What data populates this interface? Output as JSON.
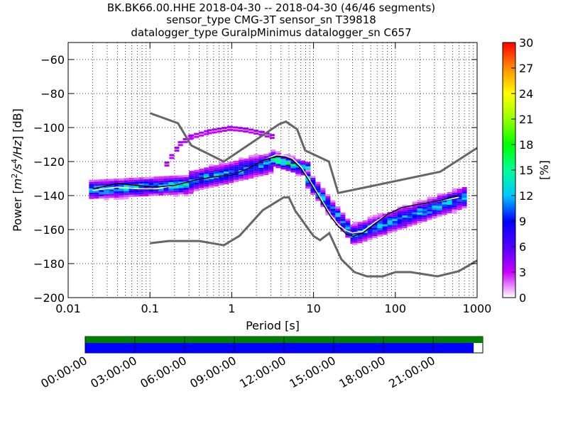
{
  "title_lines": [
    "BK.BK66.00.HHE   2018-04-30 -- 2018-04-30  (46/46 segments)",
    "sensor_type CMG-3T sensor_sn T39818",
    "datalogger_type GuralpMinimus datalogger_sn C657"
  ],
  "chart_data": {
    "type": "heatmap",
    "x_scale": "log",
    "xlabel": "Period [s]",
    "ylabel": "Power [m²/s⁴/Hz] [dB]",
    "ylabel_parts": {
      "pre": "Power [",
      "m": "m",
      "e1": "2",
      "s": "/s",
      "e2": "4",
      "hz": "/Hz",
      "post": "] [dB]"
    },
    "xlim": [
      0.01,
      1000
    ],
    "ylim": [
      -200,
      -50
    ],
    "x_ticks": [
      {
        "value": 0.01,
        "label": "0.01"
      },
      {
        "value": 0.1,
        "label": "0.1"
      },
      {
        "value": 1,
        "label": "1"
      },
      {
        "value": 10,
        "label": "10"
      },
      {
        "value": 100,
        "label": "100"
      },
      {
        "value": 1000,
        "label": "1000"
      }
    ],
    "y_ticks": [
      {
        "value": -60,
        "label": "−60"
      },
      {
        "value": -80,
        "label": "−80"
      },
      {
        "value": -100,
        "label": "−100"
      },
      {
        "value": -120,
        "label": "−120"
      },
      {
        "value": -140,
        "label": "−140"
      },
      {
        "value": -160,
        "label": "−160"
      },
      {
        "value": -180,
        "label": "−180"
      },
      {
        "value": -200,
        "label": "−200"
      }
    ],
    "colorbar": {
      "label": "[%]",
      "range": [
        0,
        30
      ],
      "ticks": [
        {
          "value": 0,
          "label": "0"
        },
        {
          "value": 3,
          "label": "3"
        },
        {
          "value": 6,
          "label": "6"
        },
        {
          "value": 9,
          "label": "9"
        },
        {
          "value": 12,
          "label": "12"
        },
        {
          "value": 15,
          "label": "15"
        },
        {
          "value": 18,
          "label": "18"
        },
        {
          "value": 21,
          "label": "21"
        },
        {
          "value": 24,
          "label": "24"
        },
        {
          "value": 27,
          "label": "27"
        },
        {
          "value": 30,
          "label": "30"
        }
      ]
    },
    "noise_models": [
      {
        "points": [
          [
            0.1,
            -91.5
          ],
          [
            0.22,
            -97.4
          ],
          [
            0.32,
            -110.5
          ],
          [
            0.8,
            -120
          ],
          [
            3.8,
            -98
          ],
          [
            4.6,
            -96.5
          ],
          [
            6.3,
            -101
          ],
          [
            7.9,
            -113.5
          ],
          [
            15.4,
            -120
          ],
          [
            20,
            -138.5
          ],
          [
            354,
            -126
          ],
          [
            1000,
            -112
          ]
        ]
      },
      {
        "points": [
          [
            0.1,
            -168
          ],
          [
            0.17,
            -166.7
          ],
          [
            0.4,
            -166.7
          ],
          [
            0.8,
            -169.2
          ],
          [
            1.24,
            -163.7
          ],
          [
            2.4,
            -148.6
          ],
          [
            4.3,
            -141.1
          ],
          [
            5,
            -141.1
          ],
          [
            6,
            -149
          ],
          [
            10,
            -163.8
          ],
          [
            12,
            -166.2
          ],
          [
            15.6,
            -162.1
          ],
          [
            21.9,
            -177.5
          ],
          [
            31.6,
            -185
          ],
          [
            45,
            -187.5
          ],
          [
            70,
            -187.5
          ],
          [
            101,
            -185
          ],
          [
            154,
            -185
          ],
          [
            328,
            -187.5
          ],
          [
            600,
            -184.4
          ],
          [
            1000,
            -178.2
          ]
        ]
      }
    ],
    "mode_line": {
      "points": [
        [
          0.02,
          -136
        ],
        [
          0.04,
          -133
        ],
        [
          0.07,
          -134
        ],
        [
          0.12,
          -135
        ],
        [
          0.2,
          -134
        ],
        [
          0.35,
          -131
        ],
        [
          0.6,
          -129
        ],
        [
          1,
          -128
        ],
        [
          1.6,
          -124
        ],
        [
          2.5,
          -119
        ],
        [
          3.5,
          -117
        ],
        [
          4.5,
          -117.5
        ],
        [
          5.5,
          -119
        ],
        [
          7,
          -124
        ],
        [
          9,
          -132
        ],
        [
          12,
          -142
        ],
        [
          16,
          -152
        ],
        [
          20,
          -158
        ],
        [
          25,
          -162.5
        ],
        [
          30,
          -164
        ],
        [
          40,
          -162
        ],
        [
          55,
          -157
        ],
        [
          80,
          -151
        ],
        [
          120,
          -147
        ],
        [
          200,
          -145
        ],
        [
          350,
          -143
        ],
        [
          600,
          -140
        ]
      ]
    },
    "mean_line": {
      "points": [
        [
          0.02,
          -137
        ],
        [
          0.04,
          -135
        ],
        [
          0.07,
          -136
        ],
        [
          0.12,
          -136
        ],
        [
          0.2,
          -134
        ],
        [
          0.35,
          -131
        ],
        [
          0.6,
          -129
        ],
        [
          1,
          -128
        ],
        [
          1.6,
          -124
        ],
        [
          2.5,
          -119
        ],
        [
          3.5,
          -116
        ],
        [
          4.5,
          -116.5
        ],
        [
          5.5,
          -118
        ],
        [
          7,
          -123
        ],
        [
          9,
          -131
        ],
        [
          12,
          -141
        ],
        [
          16,
          -151
        ],
        [
          20,
          -157
        ],
        [
          25,
          -160.5
        ],
        [
          30,
          -162
        ],
        [
          40,
          -161
        ],
        [
          55,
          -156
        ],
        [
          80,
          -151
        ],
        [
          120,
          -147
        ],
        [
          200,
          -145
        ],
        [
          350,
          -143
        ],
        [
          600,
          -141
        ]
      ]
    },
    "density_bands": [
      {
        "period": [
          0.018,
          0.3
        ],
        "center_db": [
          -136,
          -133
        ],
        "spread_db": 6,
        "peak_pct": 16
      },
      {
        "period": [
          0.3,
          3
        ],
        "center_db": [
          -131,
          -120
        ],
        "spread_db": 7,
        "peak_pct": 14
      },
      {
        "period": [
          3,
          8
        ],
        "center_db": [
          -118,
          -124
        ],
        "spread_db": 5,
        "peak_pct": 18
      },
      {
        "period": [
          8,
          30
        ],
        "center_db": [
          -130,
          -164
        ],
        "spread_db": 6,
        "peak_pct": 15
      },
      {
        "period": [
          30,
          700
        ],
        "center_db": [
          -162,
          -140
        ],
        "spread_db": 7,
        "peak_pct": 14
      }
    ],
    "outlier_branch": {
      "points": [
        [
          0.15,
          -120
        ],
        [
          0.22,
          -108
        ],
        [
          0.3,
          -104
        ],
        [
          0.5,
          -101
        ],
        [
          0.9,
          -99
        ],
        [
          1.4,
          -100
        ],
        [
          2.2,
          -102
        ],
        [
          3,
          -104
        ]
      ],
      "peak_pct": 4
    }
  },
  "timeline": {
    "tick_labels": [
      "00:00:00",
      "03:00:00",
      "06:00:00",
      "09:00:00",
      "12:00:00",
      "15:00:00",
      "18:00:00",
      "21:00:00"
    ],
    "top_bar_fraction": 1.0,
    "bottom_bar_fraction": 0.977,
    "colors": {
      "top": "#008000",
      "bottom": "#0000ff"
    }
  },
  "colors": {
    "noise_model": "#666666",
    "mode": "#000000",
    "mean": "#ffffff"
  }
}
